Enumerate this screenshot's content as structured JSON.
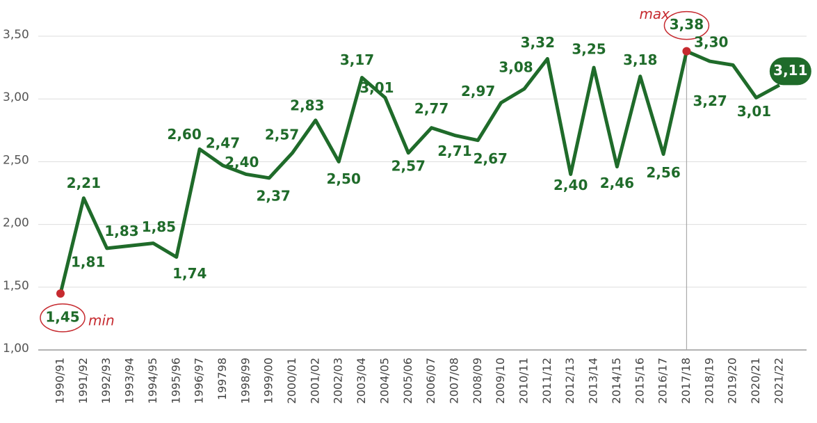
{
  "chart_data": {
    "type": "line",
    "categories": [
      "1990/91",
      "1991/92",
      "1992/93",
      "1993/94",
      "1994/95",
      "1995/96",
      "1996/97",
      "199798",
      "1998/99",
      "1999/00",
      "2000/01",
      "2001/02",
      "2002/03",
      "2003/04",
      "2004/05",
      "2005/06",
      "2006/07",
      "2007/08",
      "2008/09",
      "2009/10",
      "2010/11",
      "2011/12",
      "2012/13",
      "2013/14",
      "2014/15",
      "2015/16",
      "2016/17",
      "2017/18",
      "2018/19",
      "2019/20",
      "2020/21",
      "2021/22"
    ],
    "values": [
      1.45,
      2.21,
      1.81,
      1.83,
      1.85,
      1.74,
      2.6,
      2.47,
      2.4,
      2.37,
      2.57,
      2.83,
      2.5,
      3.17,
      3.01,
      2.57,
      2.77,
      2.71,
      2.67,
      2.97,
      3.08,
      3.32,
      2.4,
      3.25,
      2.46,
      3.18,
      2.56,
      3.38,
      3.3,
      3.27,
      3.01,
      3.11
    ],
    "value_labels": [
      "1,45",
      "2,21",
      "1,81",
      "1,83",
      "1,85",
      "1,74",
      "2,60",
      "2,47",
      "2,40",
      "2,37",
      "2,57",
      "2,83",
      "2,50",
      "3,17",
      "3,01",
      "2,57",
      "2,77",
      "2,71",
      "2,67",
      "2,97",
      "3,08",
      "3,32",
      "2,40",
      "3,25",
      "2,46",
      "3,18",
      "2,56",
      "3,38",
      "3,30",
      "3,27",
      "3,01",
      "3,11"
    ],
    "color": "#1f6b2a",
    "marker_color": "#c62a2f",
    "min_label": "min",
    "max_label": "max",
    "ylim": [
      1,
      3.5
    ],
    "yticks": [
      {
        "value": 1,
        "label": "1,00"
      },
      {
        "value": 1.5,
        "label": "1,50"
      },
      {
        "value": 2,
        "label": "2,00"
      },
      {
        "value": 2.5,
        "label": "2,50"
      },
      {
        "value": 3,
        "label": "3,00"
      },
      {
        "value": 3.5,
        "label": "3,50"
      }
    ],
    "grid": true
  }
}
